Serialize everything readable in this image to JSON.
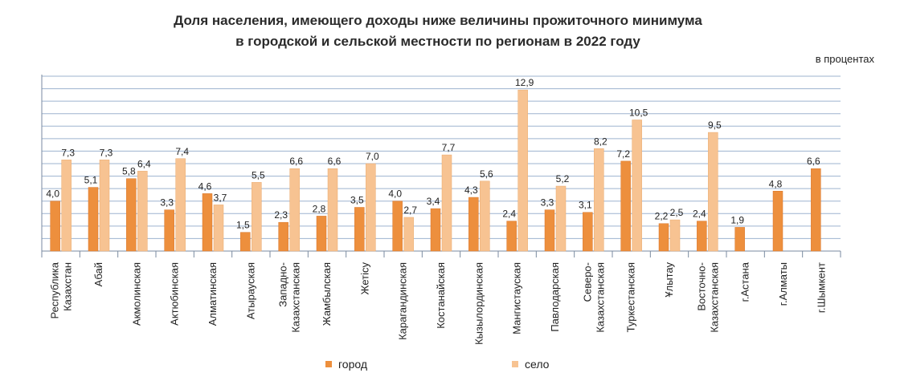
{
  "chart_data": {
    "type": "bar",
    "title": "Доля населения, имеющего доходы ниже величины прожиточного минимума",
    "subtitle": "в городской и сельской местности по регионам в 2022 году",
    "unit_label": "в процентах",
    "xlabel": "",
    "ylabel": "",
    "ylim": [
      0,
      14
    ],
    "grid": true,
    "legend_position": "bottom",
    "categories": [
      [
        "Республика",
        "Казахстан"
      ],
      [
        "Абай"
      ],
      [
        "Акмолинская"
      ],
      [
        "Актюбинская"
      ],
      [
        "Алматинская"
      ],
      [
        "Атырауская"
      ],
      [
        "Западно-",
        "Казахстанская"
      ],
      [
        "Жамбылская"
      ],
      [
        "Жетісу"
      ],
      [
        "Карагандинская"
      ],
      [
        "Костанайская"
      ],
      [
        "Кызылординская"
      ],
      [
        "Мангистауская"
      ],
      [
        "Павлодарская"
      ],
      [
        "Северо-",
        "Казахстанская"
      ],
      [
        "Туркестанская"
      ],
      [
        "Ұлытау"
      ],
      [
        "Восточно-",
        "Казахстанская"
      ],
      [
        "г.Астана"
      ],
      [
        "г.Алматы"
      ],
      [
        "г.Шымкент"
      ]
    ],
    "series": [
      {
        "name": "город",
        "color": "#ED8F3D",
        "values": [
          4.0,
          5.1,
          5.8,
          3.3,
          4.6,
          1.5,
          2.3,
          2.8,
          3.5,
          4.0,
          3.4,
          4.3,
          2.4,
          3.3,
          3.1,
          7.2,
          2.2,
          2.4,
          1.9,
          4.8,
          6.6
        ],
        "labels": [
          "4,0",
          "5,1",
          "5,8",
          "3,3",
          "4,6",
          "1,5",
          "2,3",
          "2,8",
          "3,5",
          "4,0",
          "3,4",
          "4,3",
          "2,4",
          "3,3",
          "3,1",
          "7,2",
          "2,2",
          "2,4",
          "1,9",
          "4,8",
          "6,6"
        ]
      },
      {
        "name": "село",
        "color": "#F7C392",
        "values": [
          7.3,
          7.3,
          6.4,
          7.4,
          3.7,
          5.5,
          6.6,
          6.6,
          7.0,
          2.7,
          7.7,
          5.6,
          12.9,
          5.2,
          8.2,
          10.5,
          2.5,
          9.5,
          null,
          null,
          null
        ],
        "labels": [
          "7,3",
          "7,3",
          "6,4",
          "7,4",
          "3,7",
          "5,5",
          "6,6",
          "6,6",
          "7,0",
          "2,7",
          "7,7",
          "5,6",
          "12,9",
          "5,2",
          "8,2",
          "10,5",
          "2,5",
          "9,5",
          null,
          null,
          null
        ]
      }
    ]
  }
}
